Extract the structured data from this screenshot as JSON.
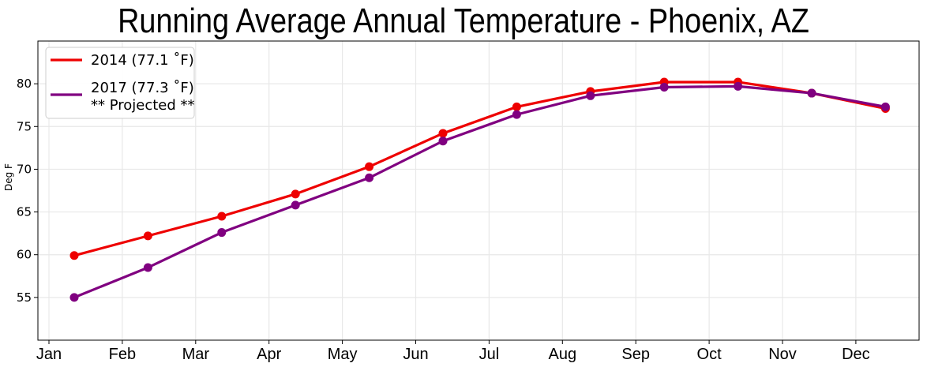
{
  "chart_data": {
    "type": "line",
    "title": "Running Average Annual Temperature - Phoenix, AZ",
    "xlabel": "",
    "ylabel": "Deg F",
    "categories": [
      "Jan",
      "Feb",
      "Mar",
      "Apr",
      "May",
      "Jun",
      "Jul",
      "Aug",
      "Sep",
      "Oct",
      "Nov",
      "Dec"
    ],
    "yticks": [
      55,
      60,
      65,
      70,
      75,
      80
    ],
    "ylim": [
      50,
      85
    ],
    "grid": true,
    "legend_position": "top-left",
    "series": [
      {
        "name": "2014 (77.1  ˚F)",
        "color": "#ee0000",
        "values": [
          59.9,
          62.2,
          64.5,
          67.1,
          70.3,
          74.2,
          77.3,
          79.1,
          80.2,
          80.2,
          78.9,
          77.1
        ]
      },
      {
        "name": "2017 (77.3  ˚F)\n** Projected **",
        "color": "#800080",
        "values": [
          55.0,
          58.5,
          62.6,
          65.8,
          69.0,
          73.3,
          76.4,
          78.6,
          79.6,
          79.7,
          78.9,
          77.3
        ]
      }
    ]
  }
}
